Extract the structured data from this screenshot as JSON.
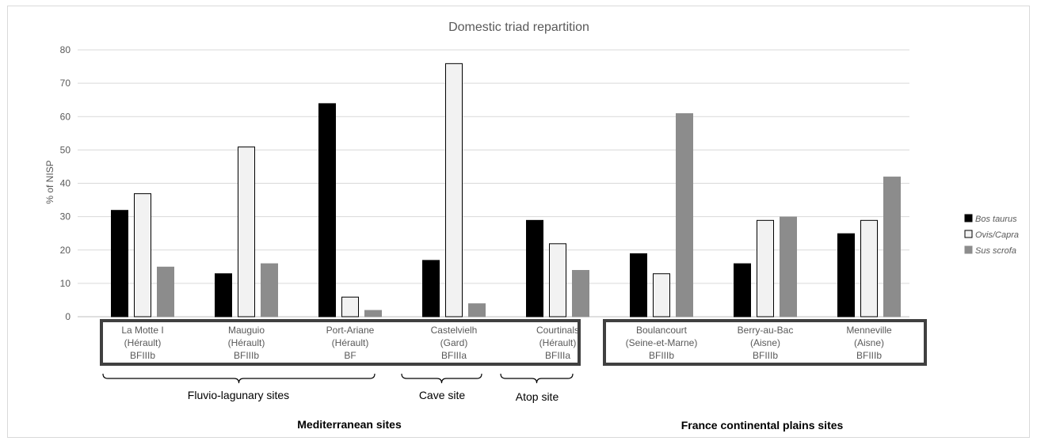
{
  "chart_data": {
    "type": "bar",
    "title": "Domestic triad repartition",
    "ylabel": "% of NISP",
    "ylim": [
      0,
      80
    ],
    "yticks": [
      0,
      10,
      20,
      30,
      40,
      50,
      60,
      70,
      80
    ],
    "grid": true,
    "legend_position": "right",
    "categories": [
      [
        "La Motte I",
        "(Hérault)",
        "BFIIIb"
      ],
      [
        "Mauguio",
        "(Hérault)",
        "BFIIIb"
      ],
      [
        "Port-Ariane",
        "(Hérault)",
        "BF"
      ],
      [
        "Castelvielh",
        "(Gard)",
        "BFIIIa"
      ],
      [
        "Courtinals",
        "(Hérault)",
        "BFIIIa"
      ],
      [
        "Boulancourt",
        "(Seine-et-Marne)",
        "BFIIIb"
      ],
      [
        "Berry-au-Bac",
        "(Aisne)",
        "BFIIIb"
      ],
      [
        "Menneville",
        "(Aisne)",
        "BFIIIb"
      ]
    ],
    "series": [
      {
        "name": "Bos taurus",
        "color": "#000000",
        "stroke": "#000000",
        "values": [
          32,
          13,
          64,
          17,
          29,
          19,
          16,
          25
        ]
      },
      {
        "name": "Ovis/Capra",
        "color": "#f2f2f2",
        "stroke": "#000000",
        "values": [
          37,
          51,
          6,
          76,
          22,
          13,
          29,
          29
        ]
      },
      {
        "name": "Sus scrofa",
        "color": "#8c8c8c",
        "stroke": "#8c8c8c",
        "values": [
          15,
          16,
          2,
          4,
          14,
          61,
          30,
          42
        ]
      }
    ],
    "annotations": {
      "subgroups": [
        "Fluvio-lagunary sites",
        "Cave site",
        "Atop site"
      ],
      "groups": [
        "Mediterranean sites",
        "France continental plains sites"
      ]
    }
  }
}
